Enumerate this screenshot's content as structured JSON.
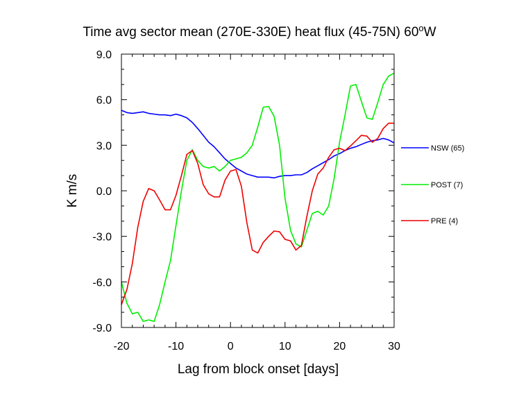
{
  "chart_data": {
    "type": "line",
    "title": "Time avg sector mean (270E-330E) heat flux (45-75N) 60",
    "title_superscript": "o",
    "title_suffix": "W",
    "xlabel": "Lag from block onset [days]",
    "ylabel": "K m/s",
    "xlim": [
      -20,
      30
    ],
    "ylim": [
      -9,
      9
    ],
    "x_ticks": [
      "-20",
      "-10",
      "0",
      "10",
      "20",
      "30"
    ],
    "y_ticks": [
      "-9.0",
      "-6.0",
      "-3.0",
      "0.0",
      "3.0",
      "6.0",
      "9.0"
    ],
    "grid": false,
    "legend_position": "right",
    "series": [
      {
        "name": "NSW (65)",
        "color": "#0000ff",
        "x": [
          -20,
          -19,
          -18,
          -17,
          -16,
          -15,
          -14,
          -13,
          -12,
          -11,
          -10,
          -9,
          -8,
          -7,
          -6,
          -5,
          -4,
          -3,
          -2,
          -1,
          0,
          1,
          2,
          3,
          4,
          5,
          6,
          7,
          8,
          9,
          10,
          11,
          12,
          13,
          14,
          15,
          16,
          17,
          18,
          19,
          20,
          21,
          22,
          23,
          24,
          25,
          26,
          27,
          28,
          29,
          30
        ],
        "y": [
          5.3,
          5.15,
          5.1,
          5.15,
          5.2,
          5.1,
          5.05,
          5.0,
          5.0,
          4.95,
          5.05,
          4.95,
          4.8,
          4.5,
          4.1,
          3.65,
          3.2,
          2.9,
          2.5,
          2.1,
          1.8,
          1.5,
          1.3,
          1.1,
          1.0,
          0.9,
          0.9,
          0.9,
          0.85,
          0.95,
          1.0,
          1.0,
          1.05,
          1.05,
          1.2,
          1.45,
          1.65,
          1.85,
          2.05,
          2.3,
          2.45,
          2.65,
          2.8,
          2.9,
          3.05,
          3.2,
          3.3,
          3.35,
          3.45,
          3.35,
          3.15
        ]
      },
      {
        "name": "POST (7)",
        "color": "#00ee00",
        "x": [
          -20,
          -19,
          -18,
          -17,
          -16,
          -15,
          -14,
          -13,
          -12,
          -11,
          -10,
          -9,
          -8,
          -7,
          -6,
          -5,
          -4,
          -3,
          -2,
          -1,
          0,
          1,
          2,
          3,
          4,
          5,
          6,
          7,
          8,
          9,
          10,
          11,
          12,
          13,
          14,
          15,
          16,
          17,
          18,
          19,
          20,
          21,
          22,
          23,
          24,
          25,
          26,
          27,
          28,
          29,
          30
        ],
        "y": [
          -6.0,
          -7.4,
          -8.1,
          -8.0,
          -8.6,
          -8.5,
          -8.6,
          -7.5,
          -6.0,
          -4.6,
          -2.3,
          0.0,
          2.0,
          2.7,
          2.0,
          1.6,
          1.5,
          1.6,
          1.3,
          1.6,
          2.0,
          2.1,
          2.2,
          2.5,
          3.0,
          4.2,
          5.5,
          5.55,
          4.9,
          3.0,
          -0.5,
          -2.6,
          -3.5,
          -3.7,
          -2.6,
          -1.5,
          -1.35,
          -1.6,
          -1.0,
          0.8,
          3.2,
          5.0,
          6.9,
          7.0,
          5.9,
          4.8,
          4.7,
          5.8,
          7.0,
          7.55,
          7.75
        ]
      },
      {
        "name": "PRE (4)",
        "color": "#ee0000",
        "x": [
          -20,
          -19,
          -18,
          -17,
          -16,
          -15,
          -14,
          -13,
          -12,
          -11,
          -10,
          -9,
          -8,
          -7,
          -6,
          -5,
          -4,
          -3,
          -2,
          -1,
          0,
          1,
          2,
          3,
          4,
          5,
          6,
          7,
          8,
          9,
          10,
          11,
          12,
          13,
          14,
          15,
          16,
          17,
          18,
          19,
          20,
          21,
          22,
          23,
          24,
          25,
          26,
          27,
          28,
          29,
          30
        ],
        "y": [
          -7.5,
          -6.5,
          -4.8,
          -2.4,
          -0.7,
          0.15,
          0.0,
          -0.6,
          -1.25,
          -1.25,
          -0.3,
          1.0,
          2.4,
          2.65,
          1.8,
          0.4,
          -0.2,
          -0.4,
          -0.4,
          0.7,
          1.3,
          1.4,
          0.3,
          -2.1,
          -3.9,
          -4.1,
          -3.4,
          -3.0,
          -2.65,
          -2.7,
          -3.2,
          -3.3,
          -3.9,
          -3.6,
          -1.7,
          0.0,
          1.1,
          1.5,
          2.2,
          2.7,
          2.8,
          2.65,
          2.95,
          3.3,
          3.65,
          3.6,
          3.2,
          3.45,
          4.1,
          4.45,
          4.45
        ]
      }
    ]
  }
}
